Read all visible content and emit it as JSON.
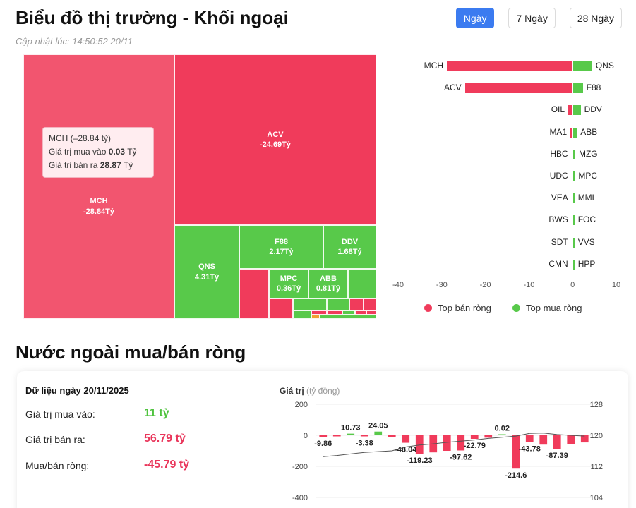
{
  "header": {
    "title": "Biểu đồ thị trường - Khối ngoại",
    "updated": "Cập nhật lúc: 14:50:52 20/11"
  },
  "period_tabs": [
    {
      "label": "Ngày",
      "active": true
    },
    {
      "label": "7 Ngày",
      "active": false
    },
    {
      "label": "28 Ngày",
      "active": false
    }
  ],
  "tooltip": {
    "title": "MCH (–28.84 tỷ)",
    "buy_label": "Giá trị mua vào",
    "buy_value": "0.03",
    "sell_label": "Giá trị bán ra",
    "sell_value": "28.87",
    "unit": "Tỷ"
  },
  "legend": {
    "sell": "Top bán ròng",
    "buy": "Top mua ròng",
    "sell_color": "#f03b5b",
    "buy_color": "#58c94a"
  },
  "section2": {
    "title": "Nước ngoài mua/bán ròng",
    "date_label": "Dữ liệu ngày 20/11/2025",
    "buy_label": "Giá trị mua vào:",
    "buy_value": "11 tỷ",
    "sell_label": "Giá trị bán ra:",
    "sell_value": "56.79 tỷ",
    "net_label": "Mua/bán ròng:",
    "net_value": "-45.79 tỷ"
  },
  "chart_data": [
    {
      "type": "treemap",
      "items": [
        {
          "name": "MCH",
          "value": -28.84,
          "label": "-28.84Tỷ"
        },
        {
          "name": "ACV",
          "value": -24.69,
          "label": "-24.69Tỷ"
        },
        {
          "name": "QNS",
          "value": 4.31,
          "label": "4.31Tỷ"
        },
        {
          "name": "F88",
          "value": 2.17,
          "label": "2.17Tỷ"
        },
        {
          "name": "DDV",
          "value": 1.68,
          "label": "1.68Tỷ"
        },
        {
          "name": "MPC",
          "value": 0.36,
          "label": "0.36Tỷ"
        },
        {
          "name": "ABB",
          "value": 0.81,
          "label": "0.81Tỷ"
        }
      ]
    },
    {
      "type": "bar",
      "orientation": "horizontal",
      "xlim": [
        -40,
        10
      ],
      "x_ticks": [
        -40,
        -30,
        -20,
        -10,
        0,
        10
      ],
      "sell": [
        {
          "name": "MCH",
          "value": -28.84
        },
        {
          "name": "ACV",
          "value": -24.69
        },
        {
          "name": "OIL",
          "value": -1.0
        },
        {
          "name": "MA1",
          "value": -0.5
        },
        {
          "name": "HBC",
          "value": -0.1
        },
        {
          "name": "UDC",
          "value": -0.05
        },
        {
          "name": "VEA",
          "value": -0.02
        },
        {
          "name": "BWS",
          "value": -0.01
        },
        {
          "name": "SDT",
          "value": -0.01
        },
        {
          "name": "CMN",
          "value": -0.01
        }
      ],
      "buy": [
        {
          "name": "QNS",
          "value": 4.31
        },
        {
          "name": "F88",
          "value": 2.17
        },
        {
          "name": "DDV",
          "value": 1.68
        },
        {
          "name": "ABB",
          "value": 0.81
        },
        {
          "name": "MZG",
          "value": 0.45
        },
        {
          "name": "MPC",
          "value": 0.36
        },
        {
          "name": "MML",
          "value": 0.05
        },
        {
          "name": "FOC",
          "value": 0.03
        },
        {
          "name": "VVS",
          "value": 0.02
        },
        {
          "name": "HPP",
          "value": 0.01
        }
      ]
    },
    {
      "type": "bar",
      "ylabel": "Giá trị",
      "ylabel_unit": "(tỷ đồng)",
      "ylim": [
        -400,
        200
      ],
      "y_ticks": [
        200,
        0,
        -200,
        -400
      ],
      "y2lim": [
        104,
        128
      ],
      "y2_ticks": [
        128,
        120,
        112,
        104
      ],
      "values": [
        -9.86,
        -5.0,
        10.73,
        -3.38,
        24.05,
        -12.0,
        -48.04,
        -119.23,
        -110.0,
        -100.0,
        -97.62,
        -22.79,
        -15.0,
        0.02,
        -214.6,
        -43.78,
        -60.0,
        -87.39,
        -55.0,
        -45.79
      ],
      "data_labels": [
        "-9.86",
        "",
        "10.73",
        "-3.38",
        "24.05",
        "",
        "-48.04",
        "-119.23",
        "",
        "",
        "-97.62",
        "-22.79",
        "",
        "0.02",
        "-214.6",
        "-43.78",
        "",
        "-87.39",
        "",
        ""
      ],
      "line": [
        114.5,
        114.8,
        115.2,
        115.6,
        115.8,
        116.0,
        117.0,
        117.5,
        117.8,
        118.2,
        118.5,
        118.8,
        119.2,
        119.5,
        119.8,
        120.5,
        120.6,
        120.2,
        120.0,
        119.8
      ]
    }
  ]
}
